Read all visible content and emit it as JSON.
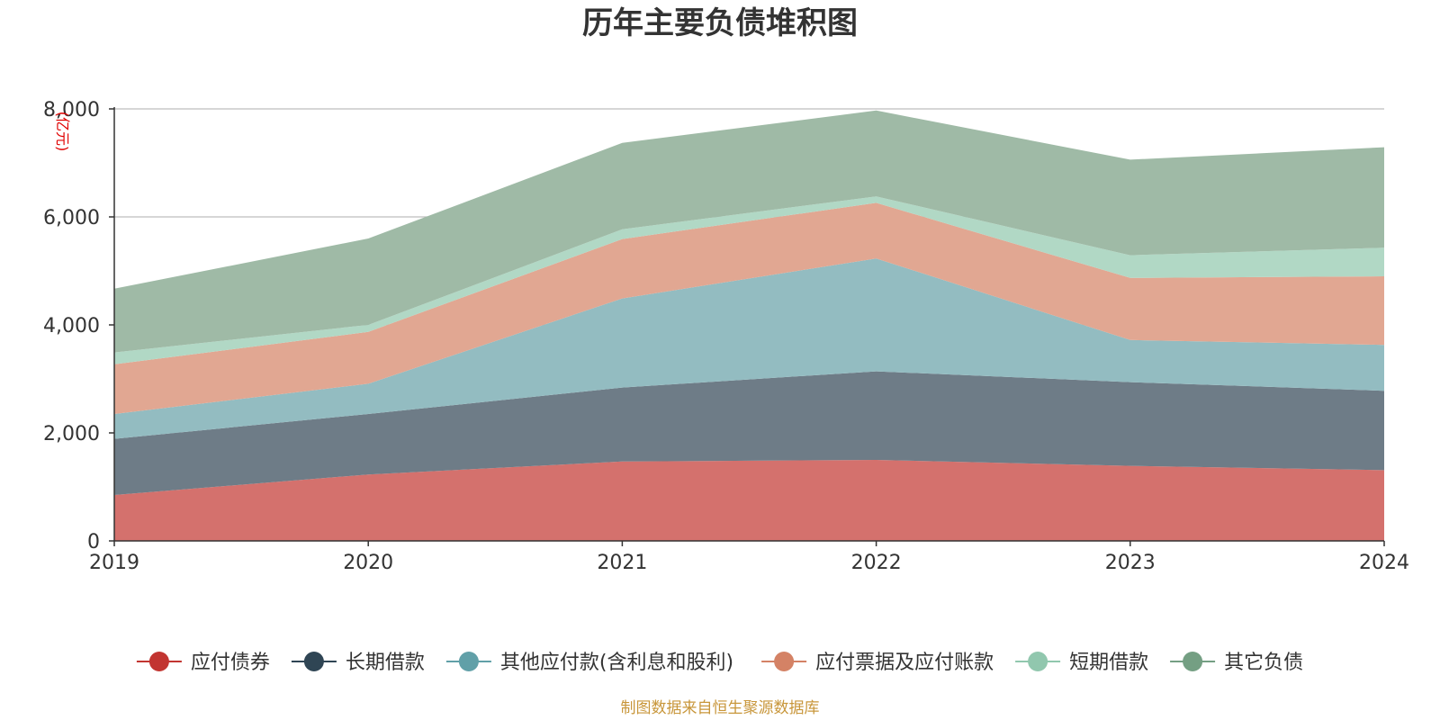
{
  "chart_data": {
    "type": "area",
    "stacked": true,
    "title": "历年主要负债堆积图",
    "ylabel": "(亿元)",
    "xlabel": "",
    "x": [
      "2019",
      "2020",
      "2021",
      "2022",
      "2023",
      "2024"
    ],
    "ylim": [
      0,
      8000
    ],
    "yticks": [
      0,
      2000,
      4000,
      6000,
      8000
    ],
    "ytick_labels": [
      "0",
      "2,000",
      "4,000",
      "6,000",
      "8,000"
    ],
    "grid": true,
    "legend_position": "bottom",
    "series": [
      {
        "name": "应付债券",
        "color": "#c23531",
        "fill": "#d4716d",
        "values": [
          850,
          1230,
          1470,
          1500,
          1390,
          1310
        ]
      },
      {
        "name": "长期借款",
        "color": "#2f4554",
        "fill": "#6e7c87",
        "values": [
          1040,
          1120,
          1370,
          1640,
          1550,
          1470
        ]
      },
      {
        "name": "其他应付款(含利息和股利)",
        "color": "#61a0a8",
        "fill": "#93bcc1",
        "values": [
          460,
          560,
          1650,
          2090,
          780,
          850
        ]
      },
      {
        "name": "应付票据及应付账款",
        "color": "#d48265",
        "fill": "#e1a792",
        "values": [
          920,
          960,
          1100,
          1030,
          1150,
          1270
        ]
      },
      {
        "name": "短期借款",
        "color": "#91c7ae",
        "fill": "#b1d8c5",
        "values": [
          220,
          130,
          180,
          120,
          420,
          530
        ]
      },
      {
        "name": "其它负债",
        "color": "#749f83",
        "fill": "#9fbaa6",
        "values": [
          1180,
          1600,
          1600,
          1590,
          1770,
          1860
        ]
      }
    ]
  },
  "source_text": "制图数据来自恒生聚源数据库"
}
